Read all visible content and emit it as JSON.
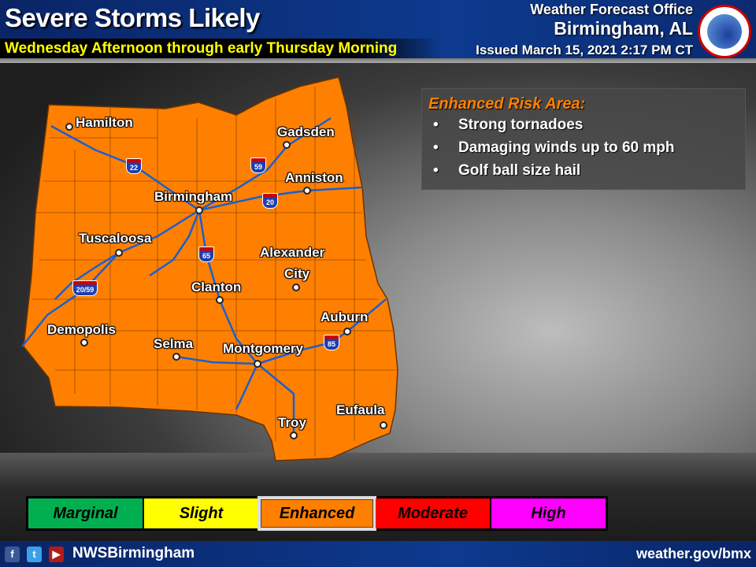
{
  "header": {
    "title": "Severe Storms Likely",
    "subtitle": "Wednesday Afternoon through early Thursday Morning",
    "office_line1": "Weather Forecast Office",
    "office_line2": "Birmingham, AL",
    "issued": "Issued March 15, 2021 2:17 PM CT",
    "logo_text": "NATIONAL WEATHER SERVICE"
  },
  "map": {
    "risk_fill": "#ff8000",
    "road_color": "#1a5fd0",
    "cities": [
      "Hamilton",
      "Gadsden",
      "Anniston",
      "Birmingham",
      "Tuscaloosa",
      "Alexander",
      "City",
      "Clanton",
      "Demopolis",
      "Selma",
      "Montgomery",
      "Auburn",
      "Eufaula",
      "Troy"
    ],
    "interstates": [
      "22",
      "59",
      "20",
      "65",
      "20/59",
      "85"
    ]
  },
  "info": {
    "heading": "Enhanced Risk Area:",
    "bullet": "•",
    "items": [
      "Strong tornadoes",
      "Damaging winds up to 60 mph",
      "Golf ball size hail"
    ]
  },
  "legend": {
    "selected": "Enhanced",
    "categories": [
      {
        "label": "Marginal",
        "color": "#00b050"
      },
      {
        "label": "Slight",
        "color": "#ffff00"
      },
      {
        "label": "Enhanced",
        "color": "#ff8000"
      },
      {
        "label": "Moderate",
        "color": "#ff0000"
      },
      {
        "label": "High",
        "color": "#ff00ff"
      }
    ]
  },
  "footer": {
    "handle": "NWSBirmingham",
    "url": "weather.gov/bmx",
    "social": [
      "facebook",
      "twitter",
      "youtube"
    ]
  }
}
